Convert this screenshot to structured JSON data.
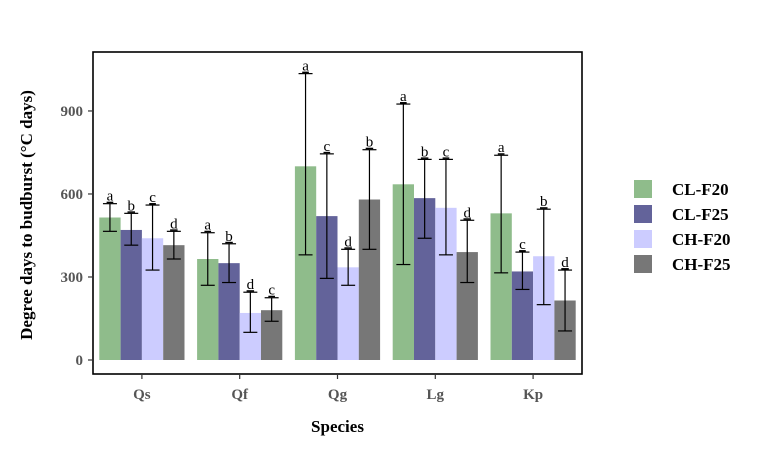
{
  "chart_data": {
    "type": "bar",
    "xlabel": "Species",
    "ylabel": "Degree days to budburst (°C days)",
    "ylim": [
      0,
      1110
    ],
    "yticks": [
      0,
      300,
      600,
      900
    ],
    "categories": [
      "Qs",
      "Qf",
      "Qg",
      "Lg",
      "Kp"
    ],
    "series": [
      {
        "name": "CL-F20",
        "color": "#8fbc8b",
        "values": [
          515,
          365,
          700,
          635,
          530
        ],
        "err_low": [
          465,
          270,
          380,
          345,
          315
        ],
        "err_high": [
          565,
          460,
          1035,
          925,
          740
        ],
        "letters": [
          "a",
          "a",
          "a",
          "a",
          "a"
        ]
      },
      {
        "name": "CL-F25",
        "color": "#63639a",
        "values": [
          470,
          350,
          520,
          585,
          320
        ],
        "err_low": [
          415,
          280,
          295,
          440,
          255
        ],
        "err_high": [
          530,
          420,
          745,
          725,
          390
        ],
        "letters": [
          "b",
          "b",
          "c",
          "b",
          "c"
        ]
      },
      {
        "name": "CH-F20",
        "color": "#ccccff",
        "values": [
          440,
          170,
          335,
          550,
          375
        ],
        "err_low": [
          325,
          100,
          270,
          380,
          200
        ],
        "err_high": [
          560,
          245,
          400,
          725,
          545
        ],
        "letters": [
          "c",
          "d",
          "d",
          "c",
          "b"
        ]
      },
      {
        "name": "CH-F25",
        "color": "#777777",
        "values": [
          415,
          180,
          580,
          390,
          215
        ],
        "err_low": [
          365,
          140,
          400,
          280,
          105
        ],
        "err_high": [
          465,
          225,
          760,
          505,
          325
        ],
        "letters": [
          "d",
          "c",
          "b",
          "d",
          "d"
        ]
      }
    ],
    "legend_position": "right",
    "grid": false
  }
}
